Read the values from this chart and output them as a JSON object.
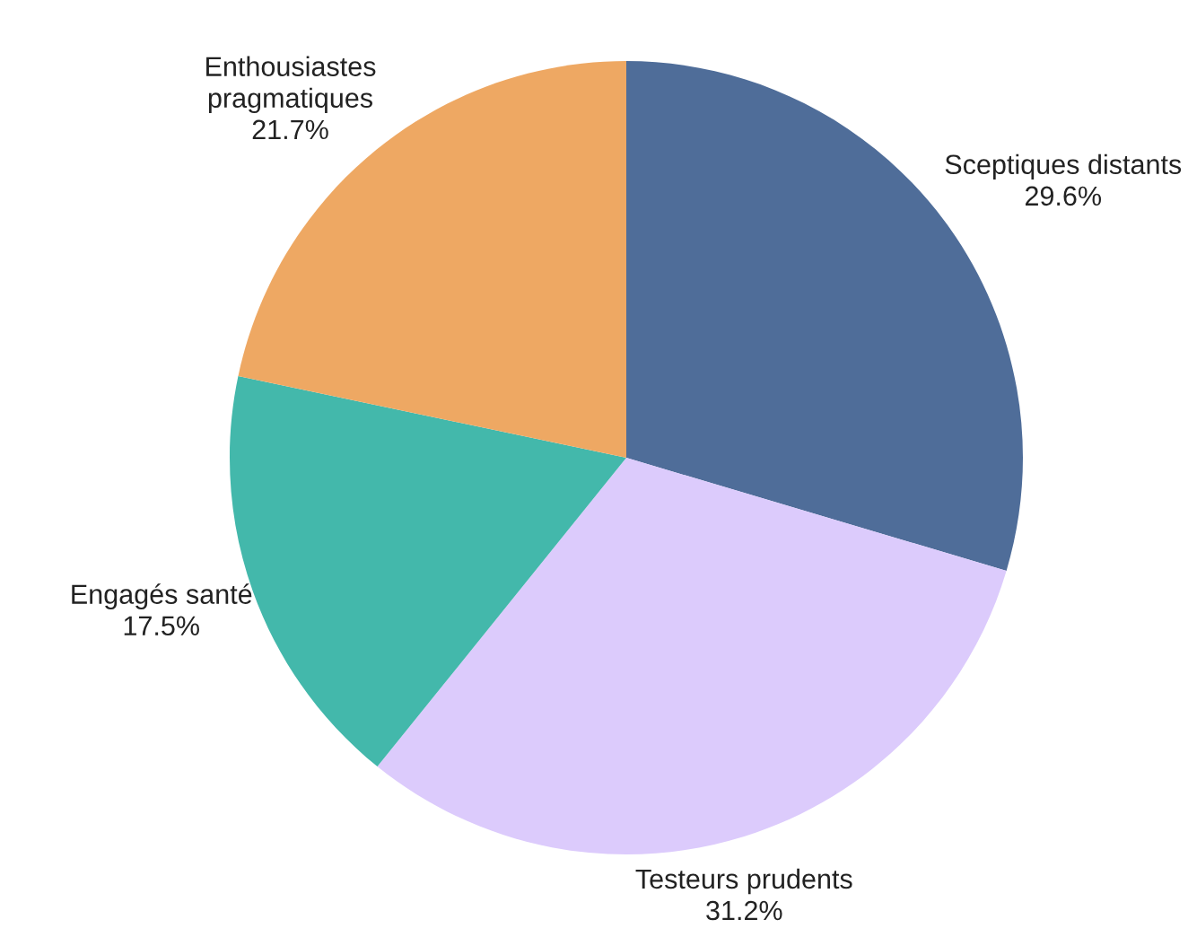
{
  "chart_data": {
    "type": "pie",
    "categories": [
      "Sceptiques distants",
      "Testeurs prudents",
      "Engagés santé",
      "Enthousiastes\npragmatiques"
    ],
    "values": [
      29.6,
      31.2,
      17.5,
      21.7
    ],
    "value_labels": [
      "29.6%",
      "31.2%",
      "17.5%",
      "21.7%"
    ],
    "colors": [
      "#4f6d99",
      "#dccbfc",
      "#43b8ab",
      "#eea863"
    ]
  }
}
